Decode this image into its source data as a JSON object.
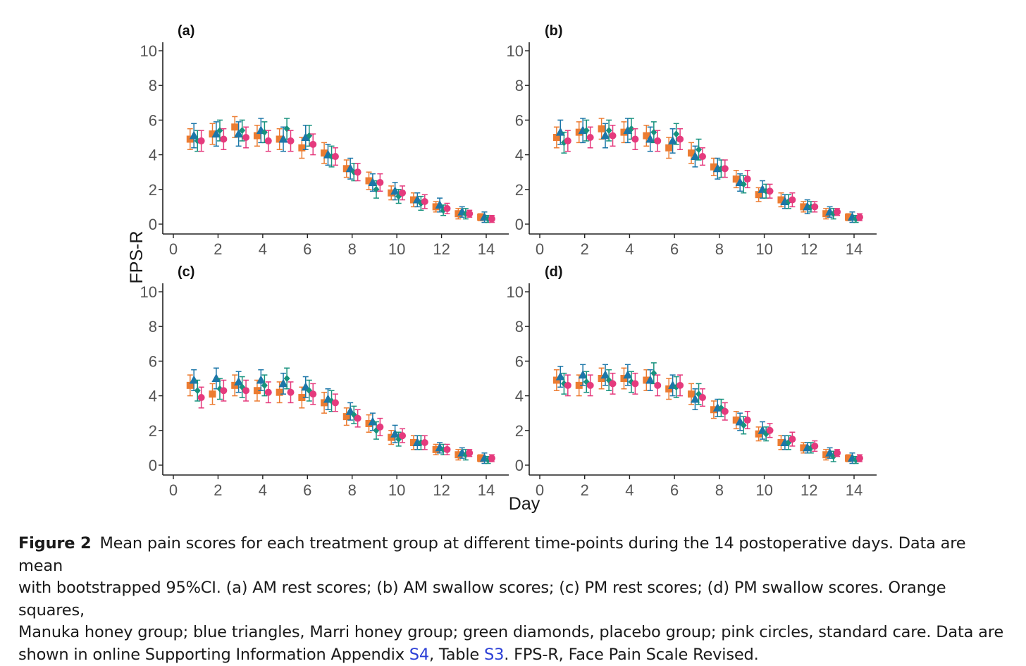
{
  "figure": {
    "ylabel": "FPS-R",
    "xlabel": "Day",
    "colors": {
      "manuka": "#ec7c31",
      "marri": "#1b76a8",
      "placebo": "#17927e",
      "standard": "#e53a7d",
      "axis": "#222222"
    }
  },
  "chart_data": [
    {
      "type": "scatter",
      "panel_label": "(a)",
      "xlim": [
        0,
        14
      ],
      "ylim": [
        0,
        10
      ],
      "xticks": [
        0,
        2,
        4,
        6,
        8,
        10,
        12,
        14
      ],
      "yticks": [
        0,
        2,
        4,
        6,
        8,
        10
      ],
      "grid": false,
      "x": [
        1,
        2,
        3,
        4,
        5,
        6,
        7,
        8,
        9,
        10,
        11,
        12,
        13,
        14
      ],
      "series": [
        {
          "group": "manuka",
          "marker": "square",
          "values": [
            4.9,
            5.2,
            5.6,
            5.1,
            4.9,
            4.4,
            4.1,
            3.2,
            2.5,
            1.8,
            1.4,
            1.0,
            0.6,
            0.4
          ],
          "err": [
            0.6,
            0.6,
            0.6,
            0.6,
            0.6,
            0.6,
            0.6,
            0.5,
            0.5,
            0.4,
            0.4,
            0.3,
            0.3,
            0.2
          ]
        },
        {
          "group": "marri",
          "marker": "triangle",
          "values": [
            5.1,
            5.2,
            5.2,
            5.4,
            4.9,
            5.0,
            4.0,
            3.2,
            2.4,
            1.9,
            1.4,
            1.1,
            0.7,
            0.4
          ],
          "err": [
            0.7,
            0.7,
            0.7,
            0.7,
            0.7,
            0.7,
            0.6,
            0.6,
            0.5,
            0.5,
            0.4,
            0.4,
            0.3,
            0.3
          ]
        },
        {
          "group": "placebo",
          "marker": "diamond",
          "values": [
            4.8,
            5.4,
            5.4,
            5.3,
            5.5,
            5.1,
            3.9,
            3.0,
            2.0,
            1.6,
            1.2,
            0.8,
            0.6,
            0.3
          ],
          "err": [
            0.6,
            0.6,
            0.6,
            0.6,
            0.6,
            0.6,
            0.6,
            0.5,
            0.5,
            0.4,
            0.4,
            0.3,
            0.3,
            0.2
          ]
        },
        {
          "group": "standard",
          "marker": "circle",
          "values": [
            4.8,
            4.9,
            5.0,
            4.8,
            4.8,
            4.6,
            3.9,
            3.0,
            2.4,
            1.8,
            1.3,
            0.9,
            0.6,
            0.3
          ],
          "err": [
            0.6,
            0.6,
            0.6,
            0.6,
            0.6,
            0.6,
            0.5,
            0.5,
            0.5,
            0.4,
            0.4,
            0.3,
            0.2,
            0.2
          ]
        }
      ]
    },
    {
      "type": "scatter",
      "panel_label": "(b)",
      "xlim": [
        0,
        14
      ],
      "ylim": [
        0,
        10
      ],
      "xticks": [
        0,
        2,
        4,
        6,
        8,
        10,
        12,
        14
      ],
      "yticks": [
        0,
        2,
        4,
        6,
        8,
        10
      ],
      "grid": false,
      "x": [
        1,
        2,
        3,
        4,
        5,
        6,
        7,
        8,
        9,
        10,
        11,
        12,
        13,
        14
      ],
      "series": [
        {
          "group": "manuka",
          "marker": "square",
          "values": [
            5.0,
            5.3,
            5.5,
            5.3,
            5.1,
            4.4,
            4.1,
            3.3,
            2.6,
            1.7,
            1.4,
            1.0,
            0.6,
            0.4
          ],
          "err": [
            0.6,
            0.6,
            0.6,
            0.6,
            0.6,
            0.6,
            0.6,
            0.5,
            0.5,
            0.4,
            0.4,
            0.3,
            0.3,
            0.2
          ]
        },
        {
          "group": "marri",
          "marker": "triangle",
          "values": [
            5.3,
            5.4,
            5.1,
            5.4,
            4.9,
            4.8,
            3.9,
            3.2,
            2.4,
            2.0,
            1.3,
            1.0,
            0.7,
            0.4
          ],
          "err": [
            0.7,
            0.7,
            0.7,
            0.7,
            0.7,
            0.7,
            0.6,
            0.6,
            0.5,
            0.5,
            0.4,
            0.4,
            0.3,
            0.3
          ]
        },
        {
          "group": "placebo",
          "marker": "diamond",
          "values": [
            4.7,
            5.4,
            5.4,
            5.5,
            5.3,
            5.2,
            4.3,
            3.2,
            2.3,
            1.9,
            1.3,
            1.0,
            0.6,
            0.3
          ],
          "err": [
            0.6,
            0.6,
            0.6,
            0.6,
            0.6,
            0.6,
            0.6,
            0.5,
            0.5,
            0.4,
            0.4,
            0.3,
            0.3,
            0.2
          ]
        },
        {
          "group": "standard",
          "marker": "circle",
          "values": [
            4.8,
            5.0,
            5.1,
            4.9,
            4.8,
            4.9,
            3.9,
            3.2,
            2.6,
            1.9,
            1.4,
            1.0,
            0.7,
            0.4
          ],
          "err": [
            0.6,
            0.6,
            0.6,
            0.6,
            0.6,
            0.6,
            0.5,
            0.5,
            0.5,
            0.4,
            0.4,
            0.3,
            0.2,
            0.2
          ]
        }
      ]
    },
    {
      "type": "scatter",
      "panel_label": "(c)",
      "xlim": [
        0,
        14
      ],
      "ylim": [
        0,
        10
      ],
      "xticks": [
        0,
        2,
        4,
        6,
        8,
        10,
        12,
        14
      ],
      "yticks": [
        0,
        2,
        4,
        6,
        8,
        10
      ],
      "grid": false,
      "x": [
        1,
        2,
        3,
        4,
        5,
        6,
        7,
        8,
        9,
        10,
        11,
        12,
        13,
        14
      ],
      "series": [
        {
          "group": "manuka",
          "marker": "square",
          "values": [
            4.6,
            4.1,
            4.6,
            4.3,
            4.2,
            3.9,
            3.6,
            2.8,
            2.4,
            1.6,
            1.3,
            0.9,
            0.6,
            0.4
          ],
          "err": [
            0.6,
            0.6,
            0.6,
            0.6,
            0.6,
            0.6,
            0.6,
            0.5,
            0.5,
            0.4,
            0.4,
            0.3,
            0.3,
            0.2
          ]
        },
        {
          "group": "marri",
          "marker": "triangle",
          "values": [
            4.9,
            5.0,
            4.8,
            4.9,
            4.7,
            4.5,
            3.8,
            3.1,
            2.5,
            1.8,
            1.3,
            1.0,
            0.7,
            0.4
          ],
          "err": [
            0.6,
            0.6,
            0.6,
            0.6,
            0.6,
            0.6,
            0.6,
            0.5,
            0.5,
            0.5,
            0.4,
            0.3,
            0.3,
            0.3
          ]
        },
        {
          "group": "placebo",
          "marker": "diamond",
          "values": [
            4.3,
            4.4,
            4.5,
            4.6,
            5.0,
            4.3,
            3.7,
            2.9,
            2.0,
            1.5,
            1.3,
            0.9,
            0.6,
            0.3
          ],
          "err": [
            0.6,
            0.6,
            0.6,
            0.6,
            0.6,
            0.6,
            0.6,
            0.5,
            0.5,
            0.4,
            0.4,
            0.3,
            0.3,
            0.2
          ]
        },
        {
          "group": "standard",
          "marker": "circle",
          "values": [
            3.9,
            4.3,
            4.3,
            4.2,
            4.2,
            4.1,
            3.6,
            2.7,
            2.2,
            1.7,
            1.3,
            0.9,
            0.7,
            0.4
          ],
          "err": [
            0.6,
            0.6,
            0.6,
            0.6,
            0.6,
            0.6,
            0.5,
            0.5,
            0.5,
            0.4,
            0.4,
            0.3,
            0.2,
            0.2
          ]
        }
      ]
    },
    {
      "type": "scatter",
      "panel_label": "(d)",
      "xlim": [
        0,
        14
      ],
      "ylim": [
        0,
        10
      ],
      "xticks": [
        0,
        2,
        4,
        6,
        8,
        10,
        12,
        14
      ],
      "yticks": [
        0,
        2,
        4,
        6,
        8,
        10
      ],
      "grid": false,
      "x": [
        1,
        2,
        3,
        4,
        5,
        6,
        7,
        8,
        9,
        10,
        11,
        12,
        13,
        14
      ],
      "series": [
        {
          "group": "manuka",
          "marker": "square",
          "values": [
            4.9,
            4.6,
            5.0,
            5.0,
            4.9,
            4.4,
            4.1,
            3.2,
            2.6,
            1.8,
            1.3,
            1.0,
            0.6,
            0.4
          ],
          "err": [
            0.6,
            0.6,
            0.6,
            0.6,
            0.6,
            0.6,
            0.6,
            0.5,
            0.5,
            0.4,
            0.4,
            0.3,
            0.3,
            0.2
          ]
        },
        {
          "group": "marri",
          "marker": "triangle",
          "values": [
            5.1,
            5.2,
            5.2,
            5.2,
            4.9,
            4.6,
            3.8,
            3.3,
            2.5,
            2.0,
            1.3,
            1.0,
            0.7,
            0.4
          ],
          "err": [
            0.6,
            0.6,
            0.6,
            0.6,
            0.6,
            0.6,
            0.6,
            0.5,
            0.5,
            0.5,
            0.4,
            0.3,
            0.3,
            0.3
          ]
        },
        {
          "group": "placebo",
          "marker": "diamond",
          "values": [
            4.7,
            4.8,
            4.9,
            4.8,
            5.3,
            4.5,
            4.1,
            3.3,
            2.3,
            1.8,
            1.3,
            1.0,
            0.5,
            0.3
          ],
          "err": [
            0.6,
            0.6,
            0.6,
            0.6,
            0.6,
            0.6,
            0.6,
            0.5,
            0.5,
            0.4,
            0.4,
            0.3,
            0.3,
            0.2
          ]
        },
        {
          "group": "standard",
          "marker": "circle",
          "values": [
            4.6,
            4.6,
            4.7,
            4.7,
            4.6,
            4.6,
            3.9,
            3.1,
            2.6,
            2.0,
            1.5,
            1.1,
            0.7,
            0.4
          ],
          "err": [
            0.6,
            0.6,
            0.6,
            0.6,
            0.6,
            0.6,
            0.5,
            0.5,
            0.5,
            0.4,
            0.4,
            0.3,
            0.2,
            0.2
          ]
        }
      ]
    }
  ],
  "caption": {
    "label": "Figure 2",
    "line1": "Mean pain scores for each treatment group at different time-points during the 14 postoperative days. Data are mean",
    "line2": "with bootstrapped 95%CI. (a) AM rest scores; (b) AM swallow scores; (c) PM rest scores; (d) PM swallow scores. Orange squares,",
    "line3": "Manuka honey group; blue triangles, Marri honey group; green diamonds, placebo group; pink circles, standard care. Data are",
    "line4_a": "shown in online Supporting Information Appendix ",
    "link1": "S4",
    "line4_b": ", Table ",
    "link2": "S3",
    "line4_c": ". FPS-R, Face Pain Scale Revised."
  }
}
